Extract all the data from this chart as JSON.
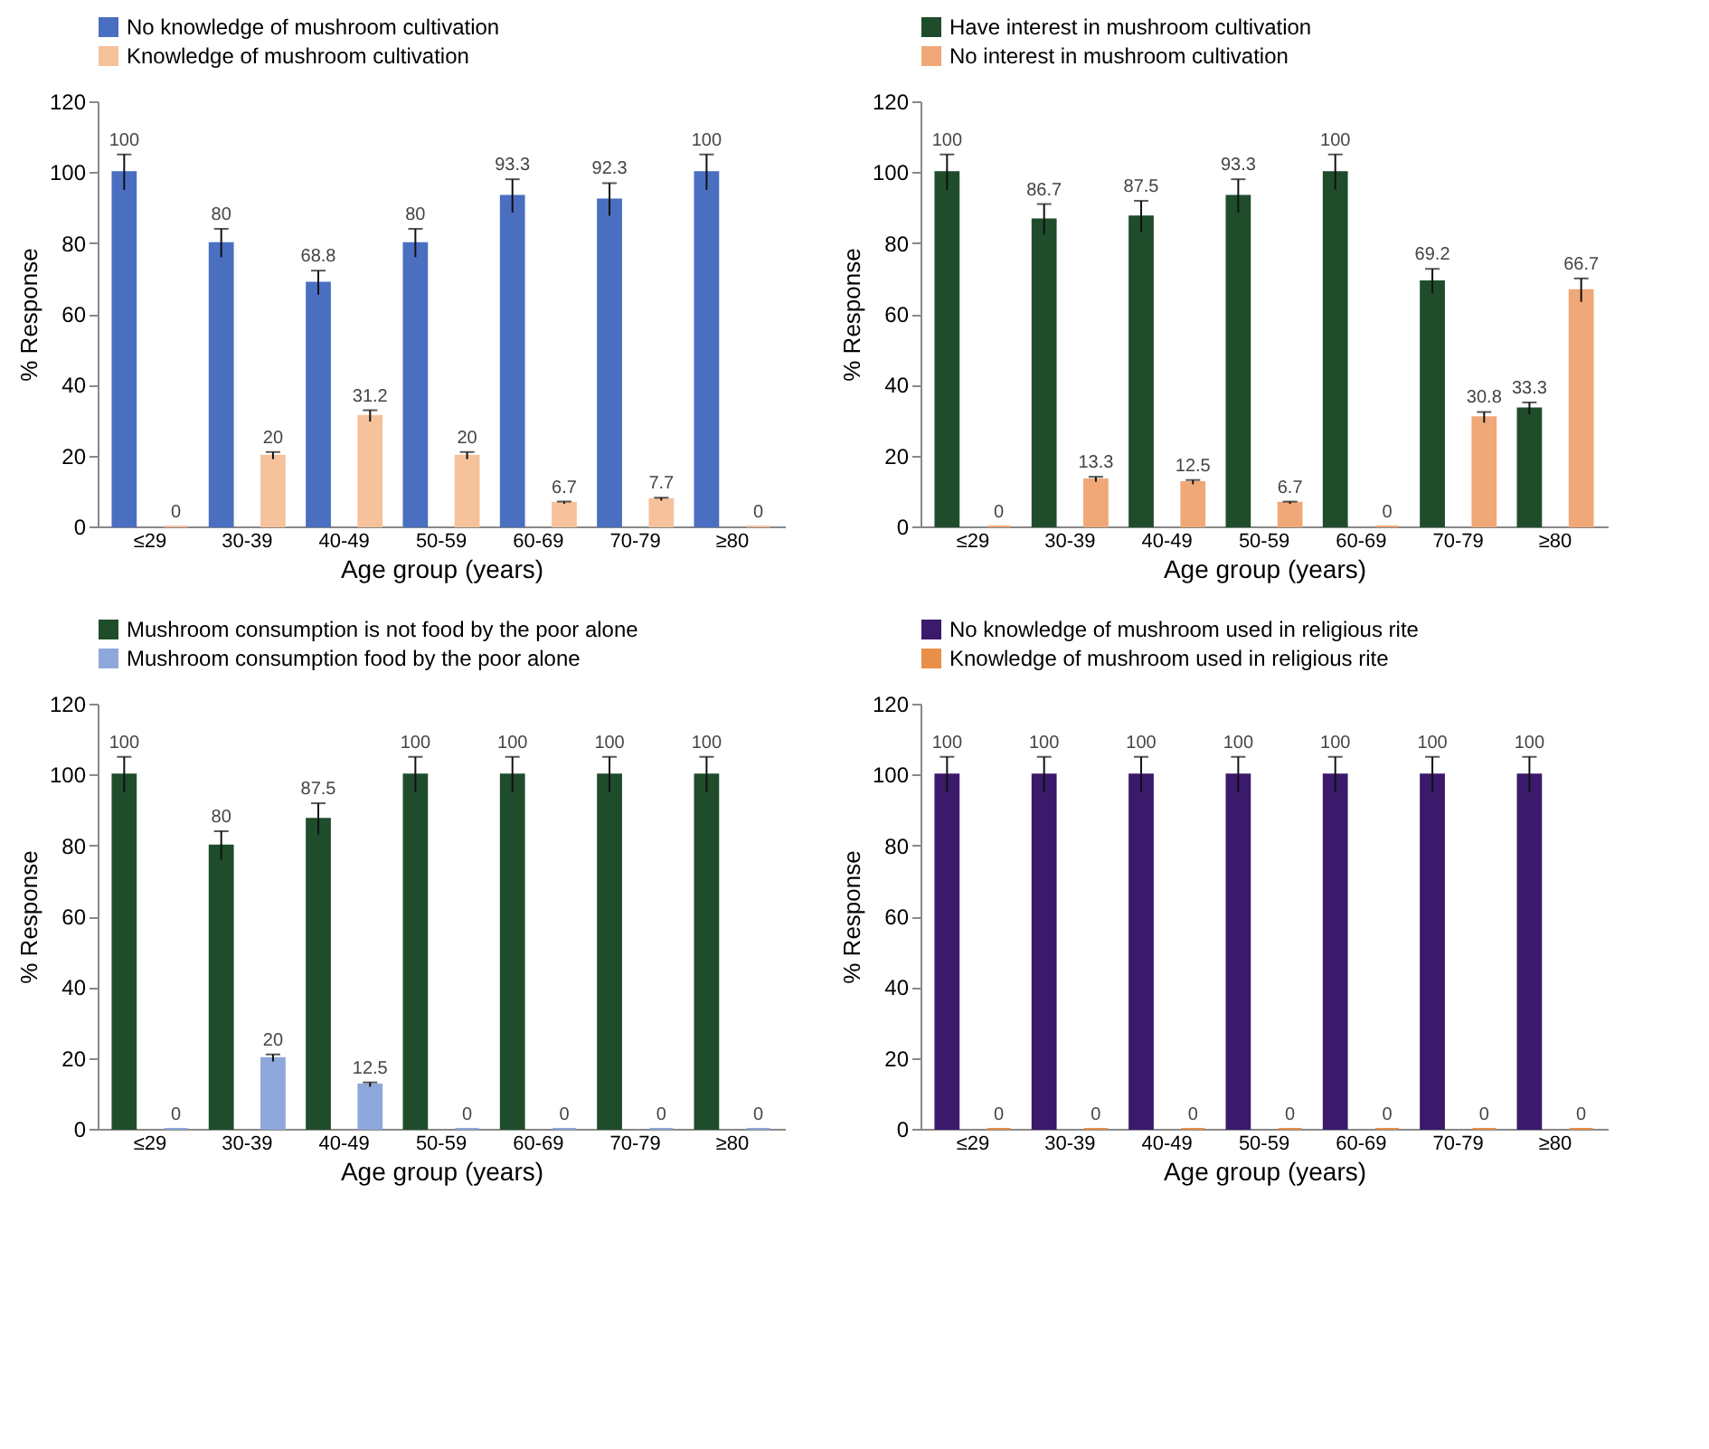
{
  "chart_data": [
    {
      "type": "bar",
      "xlabel": "Age group (years)",
      "ylabel": "% Response",
      "categories": [
        "≤29",
        "30-39",
        "40-49",
        "50-59",
        "60-69",
        "70-79",
        "≥80"
      ],
      "ylim": [
        0,
        120
      ],
      "yticks": [
        0,
        20,
        40,
        60,
        80,
        100,
        120
      ],
      "legend": "top left",
      "data_labels": true,
      "series": [
        {
          "name": "No knowledge of mushroom cultivation",
          "color": "#4a6fc1",
          "values": [
            100,
            80,
            68.8,
            80,
            93.3,
            92.3,
            100
          ],
          "errors": [
            5,
            4,
            3.4,
            4,
            4.7,
            4.6,
            5
          ]
        },
        {
          "name": "Knowledge of mushroom cultivation",
          "color": "#f5c29c",
          "values": [
            0,
            20,
            31.2,
            20,
            6.7,
            7.7,
            0
          ],
          "errors": [
            null,
            1,
            1.6,
            1,
            0.3,
            0.4,
            null
          ]
        }
      ]
    },
    {
      "type": "bar",
      "xlabel": "Age group (years)",
      "ylabel": "% Response",
      "categories": [
        "≤29",
        "30-39",
        "40-49",
        "50-59",
        "60-69",
        "70-79",
        "≥80"
      ],
      "ylim": [
        0,
        120
      ],
      "yticks": [
        0,
        20,
        40,
        60,
        80,
        100,
        120
      ],
      "legend": "top left",
      "data_labels": true,
      "series": [
        {
          "name": "Have interest in mushroom cultivation",
          "color": "#1f4d2c",
          "values": [
            100,
            86.7,
            87.5,
            93.3,
            100,
            69.2,
            33.3
          ],
          "errors": [
            5,
            4.3,
            4.4,
            4.7,
            5,
            3.5,
            1.7
          ]
        },
        {
          "name": "No interest in mushroom cultivation",
          "color": "#f0a878",
          "values": [
            0,
            13.3,
            12.5,
            6.7,
            0,
            30.8,
            66.7
          ],
          "errors": [
            null,
            0.7,
            0.6,
            0.3,
            null,
            1.5,
            3.3
          ]
        }
      ]
    },
    {
      "type": "bar",
      "xlabel": "Age group (years)",
      "ylabel": "% Response",
      "categories": [
        "≤29",
        "30-39",
        "40-49",
        "50-59",
        "60-69",
        "70-79",
        "≥80"
      ],
      "ylim": [
        0,
        120
      ],
      "yticks": [
        0,
        20,
        40,
        60,
        80,
        100,
        120
      ],
      "legend": "top left",
      "data_labels": true,
      "series": [
        {
          "name": "Mushroom consumption is not food by the poor alone",
          "color": "#1f4d2c",
          "values": [
            100,
            80,
            87.5,
            100,
            100,
            100,
            100
          ],
          "errors": [
            5,
            4,
            4.4,
            5,
            5,
            5,
            5
          ]
        },
        {
          "name": "Mushroom consumption food by the poor alone",
          "color": "#8fa8dc",
          "values": [
            0,
            20,
            12.5,
            0,
            0,
            0,
            0
          ],
          "errors": [
            null,
            1,
            0.6,
            null,
            null,
            null,
            null
          ]
        }
      ]
    },
    {
      "type": "bar",
      "xlabel": "Age group (years)",
      "ylabel": "% Response",
      "categories": [
        "≤29",
        "30-39",
        "40-49",
        "50-59",
        "60-69",
        "70-79",
        "≥80"
      ],
      "ylim": [
        0,
        120
      ],
      "yticks": [
        0,
        20,
        40,
        60,
        80,
        100,
        120
      ],
      "legend": "top left",
      "data_labels": true,
      "series": [
        {
          "name": "No knowledge of mushroom used in religious rite",
          "color": "#3b1a6b",
          "values": [
            100,
            100,
            100,
            100,
            100,
            100,
            100
          ],
          "errors": [
            5,
            5,
            5,
            5,
            5,
            5,
            5
          ]
        },
        {
          "name": "Knowledge of mushroom used in religious rite",
          "color": "#e8904a",
          "values": [
            0,
            0,
            0,
            0,
            0,
            0,
            0
          ],
          "errors": [
            null,
            null,
            null,
            null,
            null,
            null,
            null
          ]
        }
      ]
    }
  ]
}
